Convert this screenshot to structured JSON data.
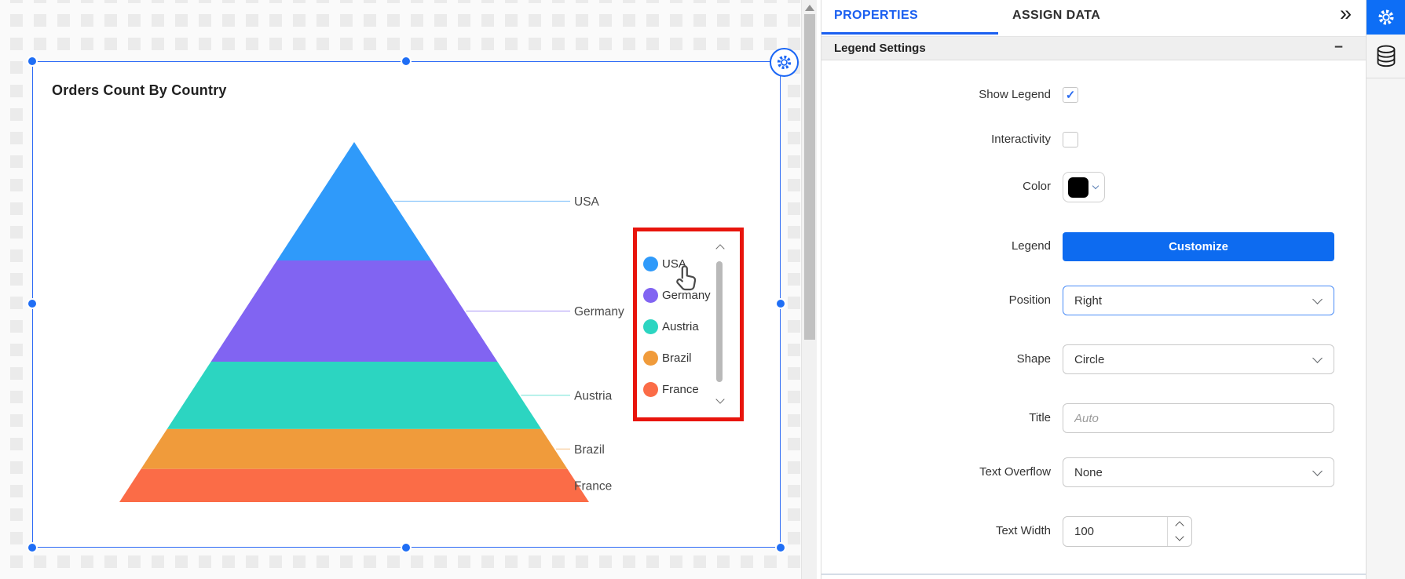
{
  "chart_data": {
    "type": "pyramid",
    "title": "Orders Count By Country",
    "categories": [
      "USA",
      "Germany",
      "Austria",
      "Brazil",
      "France"
    ],
    "values_est_height_pct": [
      32.9,
      28.1,
      18.7,
      11.1,
      9.2
    ],
    "colors": [
      "#2f9afa",
      "#8164f2",
      "#2cd5c1",
      "#f09b3b",
      "#fb6c47"
    ],
    "legend": {
      "visible": true,
      "position": "right",
      "shape": "circle",
      "items": [
        "USA",
        "Germany",
        "Austria",
        "Brazil",
        "France"
      ]
    }
  },
  "canvas": {
    "widget_title": "Orders Count By Country"
  },
  "panel": {
    "tabs": {
      "properties": "PROPERTIES",
      "assign_data": "ASSIGN DATA"
    },
    "section_title": "Legend Settings",
    "icons": {
      "panel_collapse": "»",
      "section_collapse": "−",
      "checkmark": "✓"
    },
    "fields": {
      "show_legend": {
        "label": "Show Legend",
        "checked": true
      },
      "interactivity": {
        "label": "Interactivity",
        "checked": false,
        "highlighted": true
      },
      "color": {
        "label": "Color",
        "value": "#000000"
      },
      "legend": {
        "label": "Legend",
        "button_label": "Customize"
      },
      "position": {
        "label": "Position",
        "value": "Right"
      },
      "shape": {
        "label": "Shape",
        "value": "Circle"
      },
      "title": {
        "label": "Title",
        "placeholder": "Auto",
        "value": ""
      },
      "text_overflow": {
        "label": "Text Overflow",
        "value": "None"
      },
      "text_width": {
        "label": "Text Width",
        "value": "100"
      }
    }
  },
  "colors": {
    "accent_blue": "#0d6bf0",
    "selection_blue": "#2e6bf6",
    "highlight_red": "#e8140c",
    "legend_swatch_black": "#000000"
  }
}
